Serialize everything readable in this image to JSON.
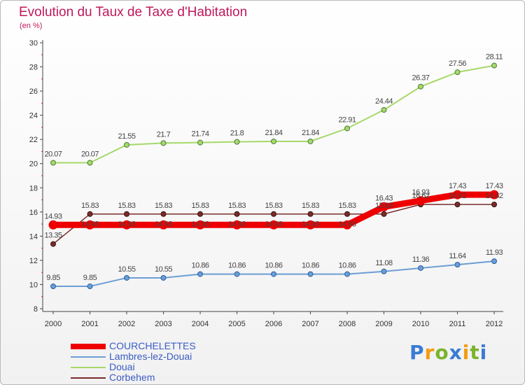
{
  "title": "Evolution du Taux de Taxe d'Habitation",
  "unit_label": "(en %)",
  "logo": {
    "text": "Proxiti",
    "letters": [
      {
        "ch": "P",
        "color": "#3a7bd5"
      },
      {
        "ch": "r",
        "color": "#f39c12"
      },
      {
        "ch": "o",
        "color": "#7bb32e"
      },
      {
        "ch": "x",
        "color": "#3a7bd5"
      },
      {
        "ch": "i",
        "color": "#f39c12"
      },
      {
        "ch": "t",
        "color": "#7bb32e"
      },
      {
        "ch": "i",
        "color": "#3a7bd5"
      }
    ]
  },
  "chart_data": {
    "type": "line",
    "title": "Evolution du Taux de Taxe d'Habitation",
    "ylabel": "(en %)",
    "xlabel": "",
    "categories": [
      "2000",
      "2001",
      "2002",
      "2003",
      "2004",
      "2005",
      "2006",
      "2007",
      "2008",
      "2009",
      "2010",
      "2011",
      "2012"
    ],
    "ylim": [
      8,
      30
    ],
    "yticks": [
      8,
      10,
      12,
      14,
      16,
      18,
      20,
      22,
      24,
      26,
      28,
      30
    ],
    "grid": false,
    "legend_position": "bottom-left",
    "series": [
      {
        "name": "COURCHELETTES",
        "color": "#ee0000",
        "width": 9,
        "values": [
          14.93,
          14.93,
          14.93,
          14.93,
          14.93,
          14.93,
          14.93,
          14.93,
          14.93,
          16.43,
          16.93,
          17.43,
          17.43
        ],
        "labels": [
          "14.93",
          "14.93",
          "14.93",
          "14.93",
          "14.93",
          "14.93",
          "14.93",
          "14.93",
          "14.93",
          "16.43",
          "16.93",
          "17.43",
          "17.43"
        ]
      },
      {
        "name": "Lambres-lez-Douai",
        "color": "#6b9ed6",
        "width": 2,
        "values": [
          9.85,
          9.85,
          10.55,
          10.55,
          10.86,
          10.86,
          10.86,
          10.86,
          10.86,
          11.08,
          11.36,
          11.64,
          11.93
        ],
        "labels": [
          "9.85",
          "9.85",
          "10.55",
          "10.55",
          "10.86",
          "10.86",
          "10.86",
          "10.86",
          "10.86",
          "11.08",
          "11.36",
          "11.64",
          "11.93"
        ]
      },
      {
        "name": "Douai",
        "color": "#a6d96a",
        "width": 2,
        "values": [
          20.07,
          20.07,
          21.55,
          21.7,
          21.74,
          21.8,
          21.84,
          21.84,
          22.91,
          24.44,
          26.37,
          27.56,
          28.11
        ],
        "labels": [
          "20.07",
          "20.07",
          "21.55",
          "21.7",
          "21.74",
          "21.8",
          "21.84",
          "21.84",
          "22.91",
          "24.44",
          "26.37",
          "27.56",
          "28.11"
        ]
      },
      {
        "name": "Corbehem",
        "color": "#7b2c2c",
        "width": 1.5,
        "values": [
          13.35,
          15.83,
          15.83,
          15.83,
          15.83,
          15.83,
          15.83,
          15.83,
          15.83,
          15.83,
          16.62,
          16.62,
          16.62
        ],
        "labels": [
          "13.35",
          "15.83",
          "15.83",
          "15.83",
          "15.83",
          "15.83",
          "15.83",
          "15.83",
          "15.83",
          "15.83",
          "16.62",
          "16.62",
          "16.62"
        ]
      }
    ]
  }
}
